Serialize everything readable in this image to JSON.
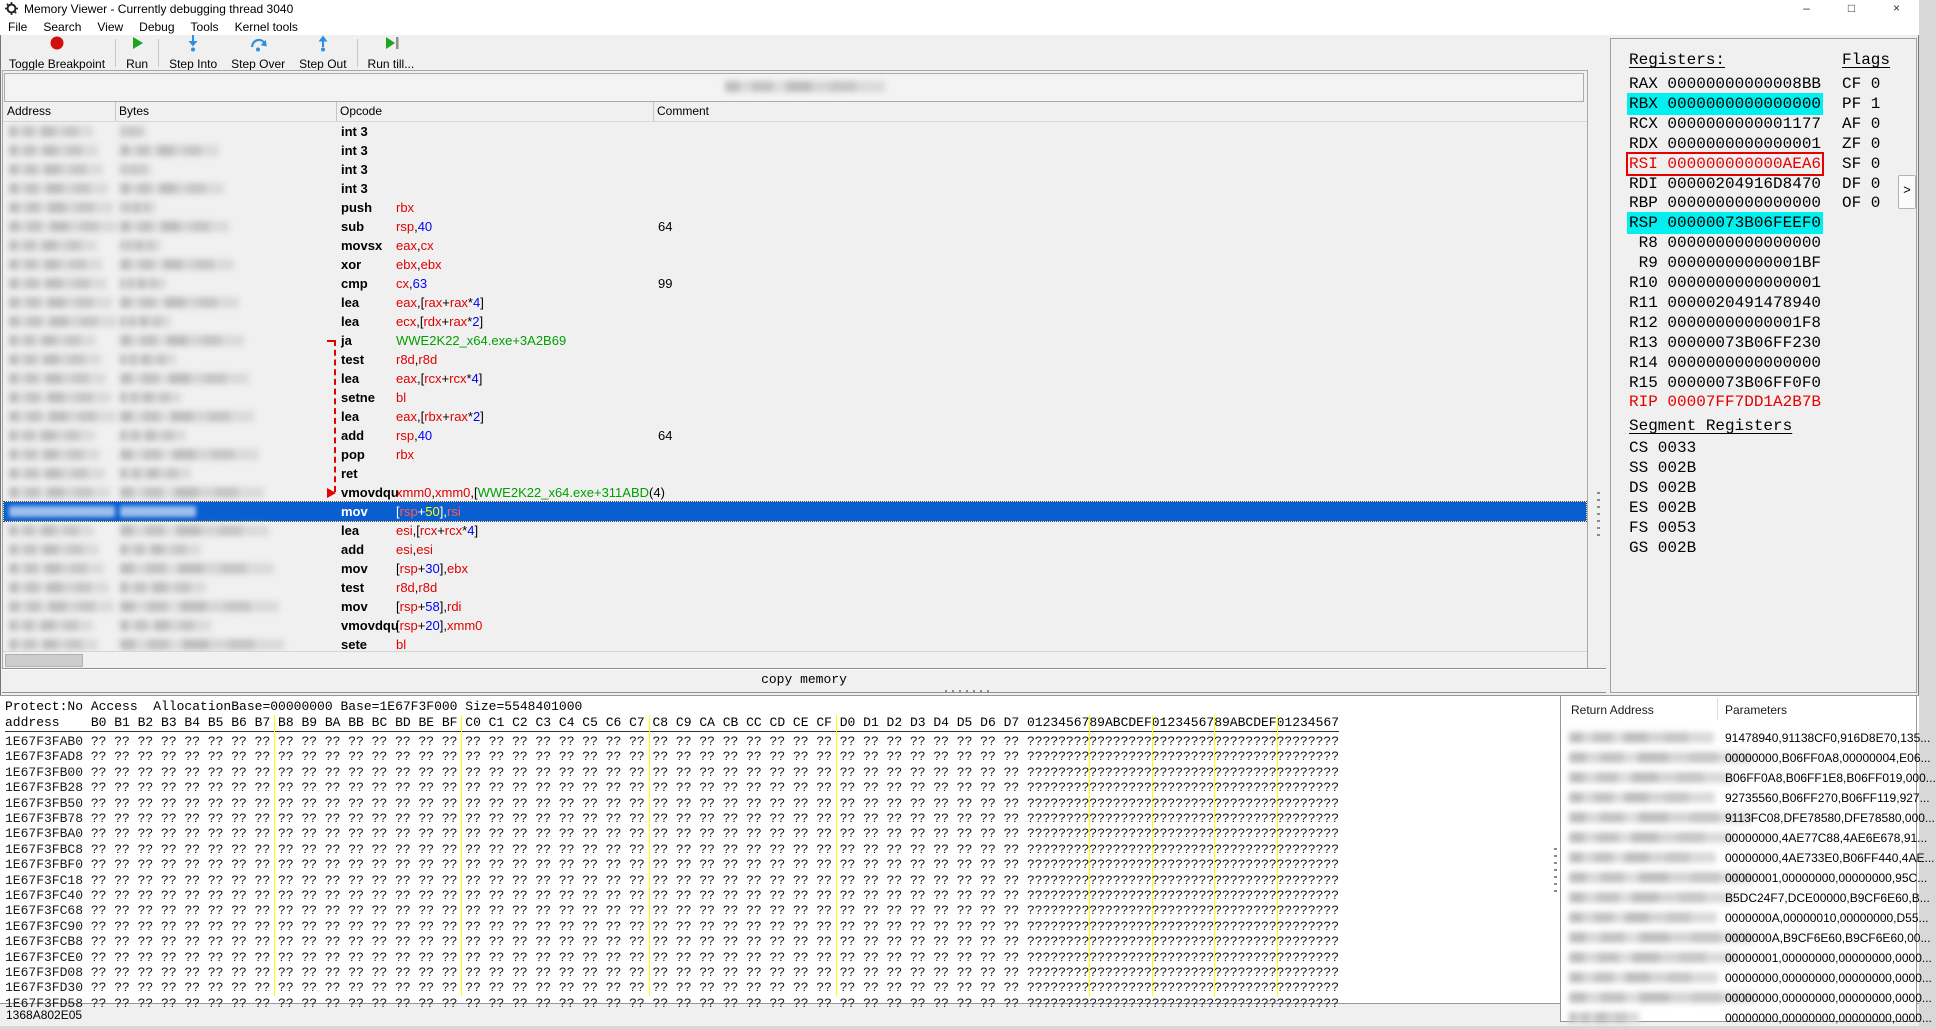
{
  "colors": {
    "selection_blue": "#0a5fd0",
    "register_highlight_cyan": "#00f0f0",
    "register_alert_red": "#e80000",
    "operand_register_red": "#e00000",
    "operand_number_blue": "#0000ff",
    "symbol_green": "#00a000",
    "selected_number_yellow": "#ffff00",
    "hex_separator_yellow": "#ffff00",
    "breakpoint_red": "#d01010",
    "run_green": "#1ea51e",
    "step_blue": "#2e8fe2"
  },
  "window": {
    "title": "Memory Viewer - Currently debugging thread 3040",
    "controls": {
      "minimize": "–",
      "maximize": "□",
      "close": "×"
    }
  },
  "menu": [
    "File",
    "Search",
    "View",
    "Debug",
    "Tools",
    "Kernel tools"
  ],
  "toolbar": [
    {
      "label": "Toggle Breakpoint",
      "icon": "breakpoint-icon"
    },
    {
      "label": "Run",
      "icon": "run-icon"
    },
    {
      "label": "Step Into",
      "icon": "step-into-icon"
    },
    {
      "label": "Step Over",
      "icon": "step-over-icon"
    },
    {
      "label": "Step Out",
      "icon": "step-out-icon"
    },
    {
      "label": "Run till...",
      "icon": "run-till-icon"
    }
  ],
  "disasm": {
    "columns": [
      "Address",
      "Bytes",
      "Opcode",
      "Comment"
    ],
    "rows": [
      {
        "mnemonic": "int 3",
        "ops": []
      },
      {
        "mnemonic": "int 3",
        "ops": []
      },
      {
        "mnemonic": "int 3",
        "ops": []
      },
      {
        "mnemonic": "int 3",
        "ops": []
      },
      {
        "mnemonic": "push",
        "ops": [
          [
            "rbx",
            "r"
          ]
        ]
      },
      {
        "mnemonic": "sub",
        "ops": [
          [
            "rsp",
            "r"
          ],
          [
            ",",
            "p"
          ],
          [
            "40",
            "n"
          ]
        ],
        "comment": "64"
      },
      {
        "mnemonic": "movsx",
        "ops": [
          [
            "eax",
            "r"
          ],
          [
            ",",
            "p"
          ],
          [
            "cx",
            "r"
          ]
        ]
      },
      {
        "mnemonic": "xor",
        "ops": [
          [
            "ebx",
            "r"
          ],
          [
            ",",
            "p"
          ],
          [
            "ebx",
            "r"
          ]
        ]
      },
      {
        "mnemonic": "cmp",
        "ops": [
          [
            "cx",
            "r"
          ],
          [
            ",",
            "p"
          ],
          [
            "63",
            "n"
          ]
        ],
        "comment": "99"
      },
      {
        "mnemonic": "lea",
        "ops": [
          [
            "eax",
            "r"
          ],
          [
            ",[",
            "p"
          ],
          [
            "rax",
            "r"
          ],
          [
            "+",
            "p"
          ],
          [
            "rax",
            "r"
          ],
          [
            "*",
            "p"
          ],
          [
            "4",
            "n"
          ],
          [
            "]",
            "p"
          ]
        ]
      },
      {
        "mnemonic": "lea",
        "ops": [
          [
            "ecx",
            "r"
          ],
          [
            ",[",
            "p"
          ],
          [
            "rdx",
            "r"
          ],
          [
            "+",
            "p"
          ],
          [
            "rax",
            "r"
          ],
          [
            "*",
            "p"
          ],
          [
            "2",
            "n"
          ],
          [
            "]",
            "p"
          ]
        ]
      },
      {
        "mnemonic": "ja",
        "ops": [
          [
            "WWE2K22_x64.exe+3A2B69",
            "g"
          ]
        ],
        "jump": "start"
      },
      {
        "mnemonic": "test",
        "ops": [
          [
            "r8d",
            "r"
          ],
          [
            ",",
            "p"
          ],
          [
            "r8d",
            "r"
          ]
        ]
      },
      {
        "mnemonic": "lea",
        "ops": [
          [
            "eax",
            "r"
          ],
          [
            ",[",
            "p"
          ],
          [
            "rcx",
            "r"
          ],
          [
            "+",
            "p"
          ],
          [
            "rcx",
            "r"
          ],
          [
            "*",
            "p"
          ],
          [
            "4",
            "n"
          ],
          [
            "]",
            "p"
          ]
        ]
      },
      {
        "mnemonic": "setne",
        "ops": [
          [
            "bl",
            "r"
          ]
        ]
      },
      {
        "mnemonic": "lea",
        "ops": [
          [
            "eax",
            "r"
          ],
          [
            ",[",
            "p"
          ],
          [
            "rbx",
            "r"
          ],
          [
            "+",
            "p"
          ],
          [
            "rax",
            "r"
          ],
          [
            "*",
            "p"
          ],
          [
            "2",
            "n"
          ],
          [
            "]",
            "p"
          ]
        ]
      },
      {
        "mnemonic": "add",
        "ops": [
          [
            "rsp",
            "r"
          ],
          [
            ",",
            "p"
          ],
          [
            "40",
            "n"
          ]
        ],
        "comment": "64"
      },
      {
        "mnemonic": "pop",
        "ops": [
          [
            "rbx",
            "r"
          ]
        ]
      },
      {
        "mnemonic": "ret",
        "ops": []
      },
      {
        "mnemonic": "vmovdqu",
        "ops": [
          [
            "xmm0",
            "r"
          ],
          [
            ",",
            "p"
          ],
          [
            "xmm0",
            "r"
          ],
          [
            ",[",
            "p"
          ],
          [
            "WWE2K22_x64.exe+311ABD",
            "g"
          ],
          [
            "(4)",
            "p"
          ]
        ],
        "jump": "end"
      },
      {
        "mnemonic": "mov",
        "selected": true,
        "ops": [
          [
            "[",
            "w"
          ],
          [
            "rsp",
            "r"
          ],
          [
            "+",
            "w"
          ],
          [
            "50",
            "y"
          ],
          [
            "],",
            "w"
          ],
          [
            "rsi",
            "r"
          ]
        ]
      },
      {
        "mnemonic": "lea",
        "ops": [
          [
            "esi",
            "r"
          ],
          [
            ",[",
            "p"
          ],
          [
            "rcx",
            "r"
          ],
          [
            "+",
            "p"
          ],
          [
            "rcx",
            "r"
          ],
          [
            "*",
            "p"
          ],
          [
            "4",
            "n"
          ],
          [
            "]",
            "p"
          ]
        ]
      },
      {
        "mnemonic": "add",
        "ops": [
          [
            "esi",
            "r"
          ],
          [
            ",",
            "p"
          ],
          [
            "esi",
            "r"
          ]
        ]
      },
      {
        "mnemonic": "mov",
        "ops": [
          [
            "[",
            "p"
          ],
          [
            "rsp",
            "r"
          ],
          [
            "+",
            "p"
          ],
          [
            "30",
            "n"
          ],
          [
            "],",
            "p"
          ],
          [
            "ebx",
            "r"
          ]
        ]
      },
      {
        "mnemonic": "test",
        "ops": [
          [
            "r8d",
            "r"
          ],
          [
            ",",
            "p"
          ],
          [
            "r8d",
            "r"
          ]
        ]
      },
      {
        "mnemonic": "mov",
        "ops": [
          [
            "[",
            "p"
          ],
          [
            "rsp",
            "r"
          ],
          [
            "+",
            "p"
          ],
          [
            "58",
            "n"
          ],
          [
            "],",
            "p"
          ],
          [
            "rdi",
            "r"
          ]
        ]
      },
      {
        "mnemonic": "vmovdqu",
        "ops": [
          [
            "[",
            "p"
          ],
          [
            "rsp",
            "r"
          ],
          [
            "+",
            "p"
          ],
          [
            "20",
            "n"
          ],
          [
            "],",
            "p"
          ],
          [
            "xmm0",
            "r"
          ]
        ]
      },
      {
        "mnemonic": "sete",
        "ops": [
          [
            "bl",
            "r"
          ]
        ]
      }
    ]
  },
  "copy_memory_label": "copy memory",
  "registers": {
    "title": "Registers:",
    "flags_title": "Flags",
    "rows": [
      {
        "name": "RAX",
        "value": "00000000000008BB"
      },
      {
        "name": "RBX",
        "value": "0000000000000000",
        "highlight": "cyan"
      },
      {
        "name": "RCX",
        "value": "0000000000001177"
      },
      {
        "name": "RDX",
        "value": "0000000000000001"
      },
      {
        "name": "RSI",
        "value": "000000000000AEA6",
        "highlight": "red-box"
      },
      {
        "name": "RDI",
        "value": "00000204916D8470"
      },
      {
        "name": "RBP",
        "value": "0000000000000000"
      },
      {
        "name": "RSP",
        "value": "00000073B06FEEF0",
        "highlight": "cyan"
      },
      {
        "name": " R8",
        "value": "0000000000000000"
      },
      {
        "name": " R9",
        "value": "00000000000001BF"
      },
      {
        "name": "R10",
        "value": "0000000000000001"
      },
      {
        "name": "R11",
        "value": "0000020491478940"
      },
      {
        "name": "R12",
        "value": "00000000000001F8"
      },
      {
        "name": "R13",
        "value": "00000073B06FF230"
      },
      {
        "name": "R14",
        "value": "0000000000000000"
      },
      {
        "name": "R15",
        "value": "00000073B06FF0F0"
      },
      {
        "name": "RIP",
        "value": "00007FF7DD1A2B7B",
        "highlight": "red-text"
      }
    ],
    "flags": [
      [
        "CF",
        "0"
      ],
      [
        "PF",
        "1"
      ],
      [
        "AF",
        "0"
      ],
      [
        "ZF",
        "0"
      ],
      [
        "SF",
        "0"
      ],
      [
        "DF",
        "0"
      ],
      [
        "OF",
        "0"
      ]
    ],
    "segment_title": "Segment Registers",
    "segments": [
      [
        "CS",
        "0033"
      ],
      [
        "SS",
        "002B"
      ],
      [
        "DS",
        "002B"
      ],
      [
        "ES",
        "002B"
      ],
      [
        "FS",
        "0053"
      ],
      [
        "GS",
        "002B"
      ]
    ],
    "expand_button": ">"
  },
  "memory": {
    "info_line": "Protect:No Access  AllocationBase=00000000 Base=1E67F3F000 Size=5548401000",
    "address_label": "address",
    "byte_headers": "B0 B1 B2 B3 B4 B5 B6 B7 B8 B9 BA BB BC BD BE BF C0 C1 C2 C3 C4 C5 C6 C7 C8 C9 CA CB CC CD CE CF D0 D1 D2 D3 D4 D5 D6 D7",
    "ascii_header": "0123456789ABCDEF0123456789ABCDEF01234567",
    "byte_placeholder": "??",
    "ascii_placeholder": "?",
    "bytes_per_row": 40,
    "addresses": [
      "1E67F3FAB0",
      "1E67F3FAD8",
      "1E67F3FB00",
      "1E67F3FB28",
      "1E67F3FB50",
      "1E67F3FB78",
      "1E67F3FBA0",
      "1E67F3FBC8",
      "1E67F3FBF0",
      "1E67F3FC18",
      "1E67F3FC40",
      "1E67F3FC68",
      "1E67F3FC90",
      "1E67F3FCB8",
      "1E67F3FCE0",
      "1E67F3FD08",
      "1E67F3FD30",
      "1E67F3FD58"
    ]
  },
  "stack": {
    "columns": [
      "Return Address",
      "Parameters"
    ],
    "parameters": [
      "91478940,91138CF0,916D8E70,135...",
      "00000000,B06FF0A8,00000004,E06...",
      "B06FF0A8,B06FF1E8,B06FF019,000...",
      "92735560,B06FF270,B06FF119,927...",
      "9113FC08,DFE78580,DFE78580,000...",
      "00000000,4AE77C88,4AE6E678,91...",
      "00000000,4AE733E0,B06FF440,4AE...",
      "00000001,00000000,00000000,95C...",
      "B5DC24F7,DCE00000,B9CF6E60,B...",
      "0000000A,00000010,00000000,D55...",
      "0000000A,B9CF6E60,B9CF6E60,00...",
      "00000001,00000000,00000000,0000...",
      "00000000,00000000,00000000,0000...",
      "00000000,00000000,00000000,0000...",
      "00000000,00000000,00000000,0000..."
    ]
  },
  "status_bar": {
    "text": "1368A802E05"
  }
}
